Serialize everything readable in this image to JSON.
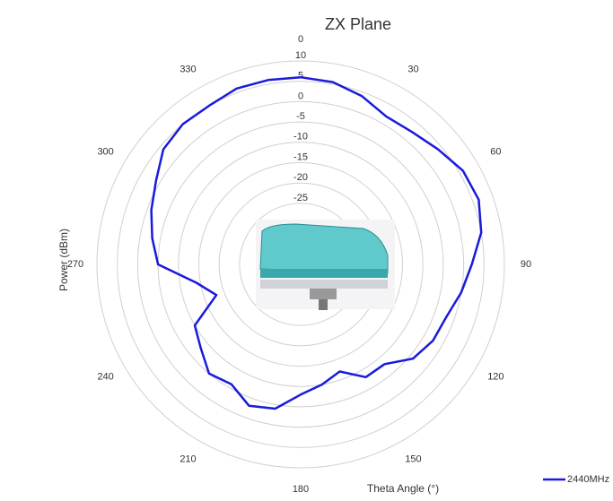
{
  "chart_data": {
    "type": "polar",
    "title": "ZX Plane",
    "r_label": "Power (dBm)",
    "theta_label": "Theta Angle (°)",
    "theta": [
      0,
      10,
      20,
      30,
      40,
      50,
      60,
      70,
      80,
      90,
      100,
      110,
      120,
      130,
      140,
      150,
      160,
      170,
      180,
      190,
      200,
      210,
      220,
      230,
      240,
      250,
      260,
      270,
      280,
      290,
      300,
      310,
      320,
      330,
      340,
      350
    ],
    "thetaticks": [
      0,
      30,
      60,
      90,
      120,
      150,
      180,
      210,
      240,
      270,
      300,
      330
    ],
    "rlim": [
      -40,
      10
    ],
    "rticks": [
      10,
      5,
      0,
      -5,
      -10,
      -15,
      -20,
      -25
    ],
    "grid": true,
    "legend": "bottom-right",
    "series": [
      {
        "name": "2440MHz",
        "color": "#1a1adb",
        "values": [
          6,
          5.5,
          4,
          2,
          2.5,
          4,
          6,
          6.5,
          5,
          2,
          0,
          -2,
          -2.5,
          -4,
          -8,
          -8,
          -12,
          -10,
          -8,
          -4,
          -3,
          -6,
          -5,
          -8,
          -10,
          -18,
          -14,
          -5,
          -3,
          -1,
          1,
          4,
          5,
          5,
          6,
          6
        ]
      }
    ]
  }
}
